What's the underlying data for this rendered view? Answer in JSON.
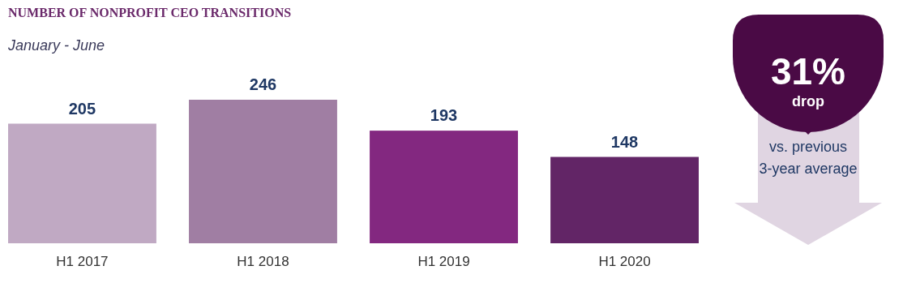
{
  "chart_data": {
    "type": "bar",
    "title": "NUMBER OF NONPROFIT CEO TRANSITIONS",
    "subtitle": "January - June",
    "categories": [
      "H1 2017",
      "H1 2018",
      "H1 2019",
      "H1 2020"
    ],
    "values": [
      205,
      246,
      193,
      148
    ],
    "colors": [
      "#c0a9c3",
      "#a07ea3",
      "#832880",
      "#622566"
    ],
    "data_labels": true,
    "annotations": [
      "31%",
      "drop",
      "vs. previous 3-year average"
    ]
  }
}
